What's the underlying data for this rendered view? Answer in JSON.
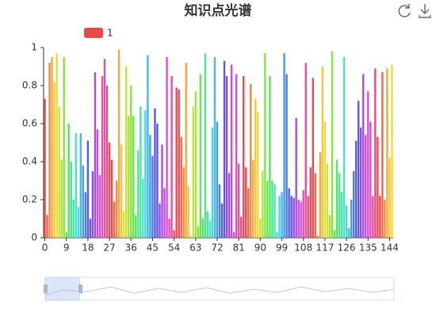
{
  "chart_data": {
    "type": "bar",
    "title": "知识点光谱",
    "series": [
      {
        "name": "1",
        "color": "#e84a4a",
        "values": [
          0.73,
          0.12,
          0.92,
          0.95,
          0.82,
          0.97,
          0.69,
          0.41,
          0.95,
          0.03,
          0.6,
          0.4,
          0.2,
          0.55,
          0.16,
          0.55,
          0.38,
          0.24,
          0.51,
          0.1,
          0.35,
          0.87,
          0.57,
          0.33,
          0.85,
          0.94,
          0.8,
          0.5,
          0.41,
          0.19,
          0.3,
          0.99,
          0.49,
          0.14,
          0.9,
          0.64,
          0.8,
          0.64,
          0.12,
          0.46,
          0.69,
          0.31,
          0.67,
          0.96,
          0.54,
          0.43,
          0.68,
          0.6,
          0.18,
          0.49,
          0.26,
          0.95,
          0.1,
          0.85,
          0.04,
          0.79,
          0.78,
          0.53,
          0.37,
          0.92,
          0.27,
          0.01,
          0.69,
          0.77,
          0.06,
          0.86,
          0.1,
          0.97,
          0.14,
          0.09,
          0.58,
          0.95,
          0.61,
          0.28,
          0.18,
          0.93,
          0.85,
          0.34,
          0.91,
          0.03,
          0.86,
          0.39,
          0.11,
          0.85,
          0.37,
          0.26,
          0.81,
          0.41,
          0.73,
          0.66,
          0.1,
          0.35,
          0.97,
          0.3,
          0.85,
          0.3,
          0.28,
          0.03,
          0.22,
          0.24,
          0.97,
          0.86,
          0.26,
          0.22,
          0.21,
          0.63,
          0.2,
          0.19,
          0.25,
          0.92,
          0.22,
          0.37,
          0.84,
          0.34,
          0.01,
          0.45,
          0.9,
          0.61,
          0.39,
          0.12,
          0.98,
          0.04,
          0.41,
          0.34,
          0.24,
          0.95,
          0.17,
          0.05,
          0.2,
          0.35,
          0.51,
          0.72,
          0.58,
          0.86,
          0.54,
          0.77,
          0.61,
          0.22,
          0.89,
          0.53,
          0.22,
          0.87,
          0.2,
          0.89,
          0.42,
          0.91
        ]
      }
    ],
    "categories": [
      "0",
      null,
      null,
      null,
      null,
      null,
      null,
      null,
      null,
      "9",
      null,
      null,
      null,
      null,
      null,
      null,
      null,
      null,
      "18",
      null,
      null,
      null,
      null,
      null,
      null,
      null,
      null,
      "27",
      null,
      null,
      null,
      null,
      null,
      null,
      null,
      null,
      "36",
      null,
      null,
      null,
      null,
      null,
      null,
      null,
      null,
      "45",
      null,
      null,
      null,
      null,
      null,
      null,
      null,
      null,
      "54",
      null,
      null,
      null,
      null,
      null,
      null,
      null,
      null,
      "63",
      null,
      null,
      null,
      null,
      null,
      null,
      null,
      null,
      "72",
      null,
      null,
      null,
      null,
      null,
      null,
      null,
      null,
      "81",
      null,
      null,
      null,
      null,
      null,
      null,
      null,
      null,
      "90",
      null,
      null,
      null,
      null,
      null,
      null,
      null,
      null,
      "99",
      null,
      null,
      null,
      null,
      null,
      null,
      null,
      null,
      "108",
      null,
      null,
      null,
      null,
      null,
      null,
      null,
      null,
      "117",
      null,
      null,
      null,
      null,
      null,
      null,
      null,
      null,
      "126",
      null,
      null,
      null,
      null,
      null,
      null,
      null,
      null,
      "135",
      null,
      null,
      null,
      null,
      null,
      null,
      null,
      null,
      "144",
      null
    ],
    "bar_colors": [
      "#e94b4b",
      "#eb6a45",
      "#ee8b40",
      "#f0ab3c",
      "#efc93a",
      "#e6df3a",
      "#cbe23c",
      "#a8e43f",
      "#86e543",
      "#67e64b",
      "#54e668",
      "#4ee68a",
      "#4ae5ab",
      "#47e3cb",
      "#46d7e1",
      "#48b9e2",
      "#4b9ae2",
      "#4e7ce1",
      "#545fe0",
      "#6b52df",
      "#8a50df",
      "#a94edf",
      "#c84ddf",
      "#e04ed8",
      "#e44fba",
      "#e7519b",
      "#e94d7a",
      "#ea4b5c"
    ],
    "ylim": [
      0,
      1
    ],
    "yticks": [
      0,
      0.2,
      0.4,
      0.6,
      0.8,
      1
    ],
    "grid": false,
    "legend": "top-left"
  }
}
